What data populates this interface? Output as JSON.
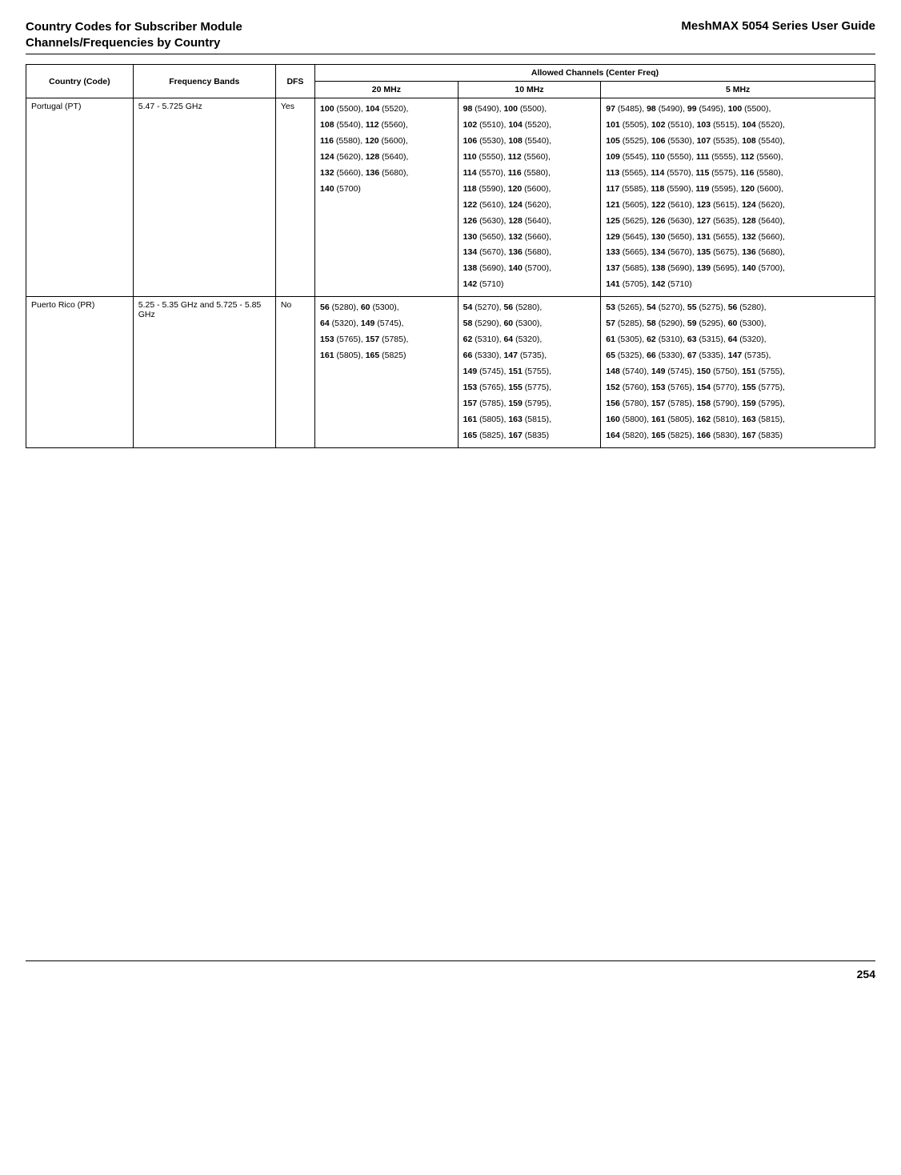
{
  "header": {
    "left_line1": "Country Codes for Subscriber Module",
    "left_line2": "Channels/Frequencies by Country",
    "right": "MeshMAX 5054 Series User Guide"
  },
  "table": {
    "headers": {
      "country": "Country (Code)",
      "freq": "Frequency Bands",
      "dfs": "DFS",
      "allowed": "Allowed Channels (Center Freq)",
      "c20": "20 MHz",
      "c10": "10 MHz",
      "c5": "5 MHz"
    },
    "rows": [
      {
        "country": "Portugal (PT)",
        "freq": "5.47 - 5.725 GHz",
        "dfs": "Yes",
        "c20": [
          [
            [
              "100",
              " (5500), "
            ],
            [
              "104",
              " (5520),"
            ]
          ],
          [
            [
              "108",
              " (5540), "
            ],
            [
              "112",
              " (5560),"
            ]
          ],
          [
            [
              "116",
              " (5580), "
            ],
            [
              "120",
              " (5600),"
            ]
          ],
          [
            [
              "124",
              " (5620), "
            ],
            [
              "128",
              " (5640),"
            ]
          ],
          [
            [
              "132",
              " (5660), "
            ],
            [
              "136",
              " (5680),"
            ]
          ],
          [
            [
              "140",
              " (5700)"
            ]
          ]
        ],
        "c10": [
          [
            [
              "98",
              " (5490), "
            ],
            [
              "100",
              " (5500),"
            ]
          ],
          [
            [
              "102",
              " (5510), "
            ],
            [
              "104",
              " (5520),"
            ]
          ],
          [
            [
              "106",
              " (5530), "
            ],
            [
              "108",
              " (5540),"
            ]
          ],
          [
            [
              "110",
              " (5550), "
            ],
            [
              "112",
              " (5560),"
            ]
          ],
          [
            [
              "114",
              " (5570), "
            ],
            [
              "116",
              " (5580),"
            ]
          ],
          [
            [
              "118",
              " (5590), "
            ],
            [
              "120",
              " (5600),"
            ]
          ],
          [
            [
              "122",
              " (5610), "
            ],
            [
              "124",
              " (5620),"
            ]
          ],
          [
            [
              "126",
              " (5630), "
            ],
            [
              "128",
              " (5640),"
            ]
          ],
          [
            [
              "130",
              " (5650), "
            ],
            [
              "132",
              " (5660),"
            ]
          ],
          [
            [
              "134",
              " (5670), "
            ],
            [
              "136",
              " (5680),"
            ]
          ],
          [
            [
              "138",
              " (5690), "
            ],
            [
              "140",
              " (5700),"
            ]
          ],
          [
            [
              "142",
              " (5710)"
            ]
          ]
        ],
        "c5": [
          [
            [
              "97",
              " (5485), "
            ],
            [
              "98",
              " (5490), "
            ],
            [
              "99",
              " (5495), "
            ],
            [
              "100",
              " (5500),"
            ]
          ],
          [
            [
              "101",
              " (5505), "
            ],
            [
              "102",
              " (5510), "
            ],
            [
              "103",
              " (5515), "
            ],
            [
              "104",
              " (5520),"
            ]
          ],
          [
            [
              "105",
              " (5525), "
            ],
            [
              "106",
              " (5530), "
            ],
            [
              "107",
              " (5535), "
            ],
            [
              "108",
              " (5540),"
            ]
          ],
          [
            [
              "109",
              " (5545), "
            ],
            [
              "110",
              " (5550), "
            ],
            [
              "111",
              " (5555), "
            ],
            [
              "112",
              " (5560),"
            ]
          ],
          [
            [
              "113",
              " (5565), "
            ],
            [
              "114",
              " (5570), "
            ],
            [
              "115",
              " (5575), "
            ],
            [
              "116",
              " (5580),"
            ]
          ],
          [
            [
              "117",
              " (5585), "
            ],
            [
              "118",
              " (5590), "
            ],
            [
              "119",
              " (5595), "
            ],
            [
              "120",
              " (5600),"
            ]
          ],
          [
            [
              "121",
              " (5605), "
            ],
            [
              "122",
              " (5610), "
            ],
            [
              "123",
              " (5615), "
            ],
            [
              "124",
              " (5620),"
            ]
          ],
          [
            [
              "125",
              " (5625), "
            ],
            [
              "126",
              " (5630), "
            ],
            [
              "127",
              " (5635), "
            ],
            [
              "128",
              " (5640),"
            ]
          ],
          [
            [
              "129",
              " (5645), "
            ],
            [
              "130",
              " (5650), "
            ],
            [
              "131",
              " (5655), "
            ],
            [
              "132",
              " (5660),"
            ]
          ],
          [
            [
              "133",
              " (5665), "
            ],
            [
              "134",
              " (5670), "
            ],
            [
              "135",
              " (5675), "
            ],
            [
              "136",
              " (5680),"
            ]
          ],
          [
            [
              "137",
              " (5685), "
            ],
            [
              "138",
              " (5690), "
            ],
            [
              "139",
              " (5695), "
            ],
            [
              "140",
              " (5700),"
            ]
          ],
          [
            [
              "141",
              " (5705), "
            ],
            [
              "142",
              " (5710)"
            ]
          ]
        ]
      },
      {
        "country": "Puerto Rico (PR)",
        "freq": "5.25 - 5.35 GHz and 5.725 - 5.85 GHz",
        "dfs": "No",
        "c20": [
          [
            [
              "56",
              " (5280), "
            ],
            [
              "60",
              " (5300),"
            ]
          ],
          [
            [
              "64",
              " (5320), "
            ],
            [
              "149",
              " (5745),"
            ]
          ],
          [
            [
              "153",
              " (5765), "
            ],
            [
              "157",
              " (5785),"
            ]
          ],
          [
            [
              "161",
              " (5805), "
            ],
            [
              "165",
              " (5825)"
            ]
          ]
        ],
        "c10": [
          [
            [
              "54",
              " (5270), "
            ],
            [
              "56",
              " (5280),"
            ]
          ],
          [
            [
              "58",
              " (5290), "
            ],
            [
              "60",
              " (5300),"
            ]
          ],
          [
            [
              "62",
              " (5310), "
            ],
            [
              "64",
              " (5320),"
            ]
          ],
          [
            [
              "66",
              " (5330), "
            ],
            [
              "147",
              " (5735),"
            ]
          ],
          [
            [
              "149",
              " (5745), "
            ],
            [
              "151",
              " (5755),"
            ]
          ],
          [
            [
              "153",
              " (5765), "
            ],
            [
              "155",
              " (5775),"
            ]
          ],
          [
            [
              "157",
              " (5785), "
            ],
            [
              "159",
              " (5795),"
            ]
          ],
          [
            [
              "161",
              " (5805), "
            ],
            [
              "163",
              " (5815),"
            ]
          ],
          [
            [
              "165",
              " (5825), "
            ],
            [
              "167",
              " (5835)"
            ]
          ]
        ],
        "c5": [
          [
            [
              "53",
              " (5265), "
            ],
            [
              "54",
              " (5270), "
            ],
            [
              "55",
              " (5275), "
            ],
            [
              "56",
              " (5280),"
            ]
          ],
          [
            [
              "57",
              " (5285), "
            ],
            [
              "58",
              " (5290), "
            ],
            [
              "59",
              " (5295), "
            ],
            [
              "60",
              " (5300),"
            ]
          ],
          [
            [
              "61",
              " (5305), "
            ],
            [
              "62",
              " (5310), "
            ],
            [
              "63",
              " (5315), "
            ],
            [
              "64",
              " (5320),"
            ]
          ],
          [
            [
              "65",
              " (5325), "
            ],
            [
              "66",
              " (5330), "
            ],
            [
              "67",
              " (5335), "
            ],
            [
              "147",
              " (5735),"
            ]
          ],
          [
            [
              "148",
              " (5740), "
            ],
            [
              "149",
              " (5745), "
            ],
            [
              "150",
              " (5750), "
            ],
            [
              "151",
              " (5755),"
            ]
          ],
          [
            [
              "152",
              " (5760), "
            ],
            [
              "153",
              " (5765), "
            ],
            [
              "154",
              " (5770), "
            ],
            [
              "155",
              " (5775),"
            ]
          ],
          [
            [
              "156",
              " (5780), "
            ],
            [
              "157",
              " (5785), "
            ],
            [
              "158",
              " (5790), "
            ],
            [
              "159",
              " (5795),"
            ]
          ],
          [
            [
              "160",
              " (5800), "
            ],
            [
              "161",
              " (5805), "
            ],
            [
              "162",
              " (5810), "
            ],
            [
              "163",
              " (5815),"
            ]
          ],
          [
            [
              "164",
              " (5820), "
            ],
            [
              "165",
              " (5825), "
            ],
            [
              "166",
              " (5830), "
            ],
            [
              "167",
              " (5835)"
            ]
          ]
        ]
      }
    ]
  },
  "page_number": "254"
}
